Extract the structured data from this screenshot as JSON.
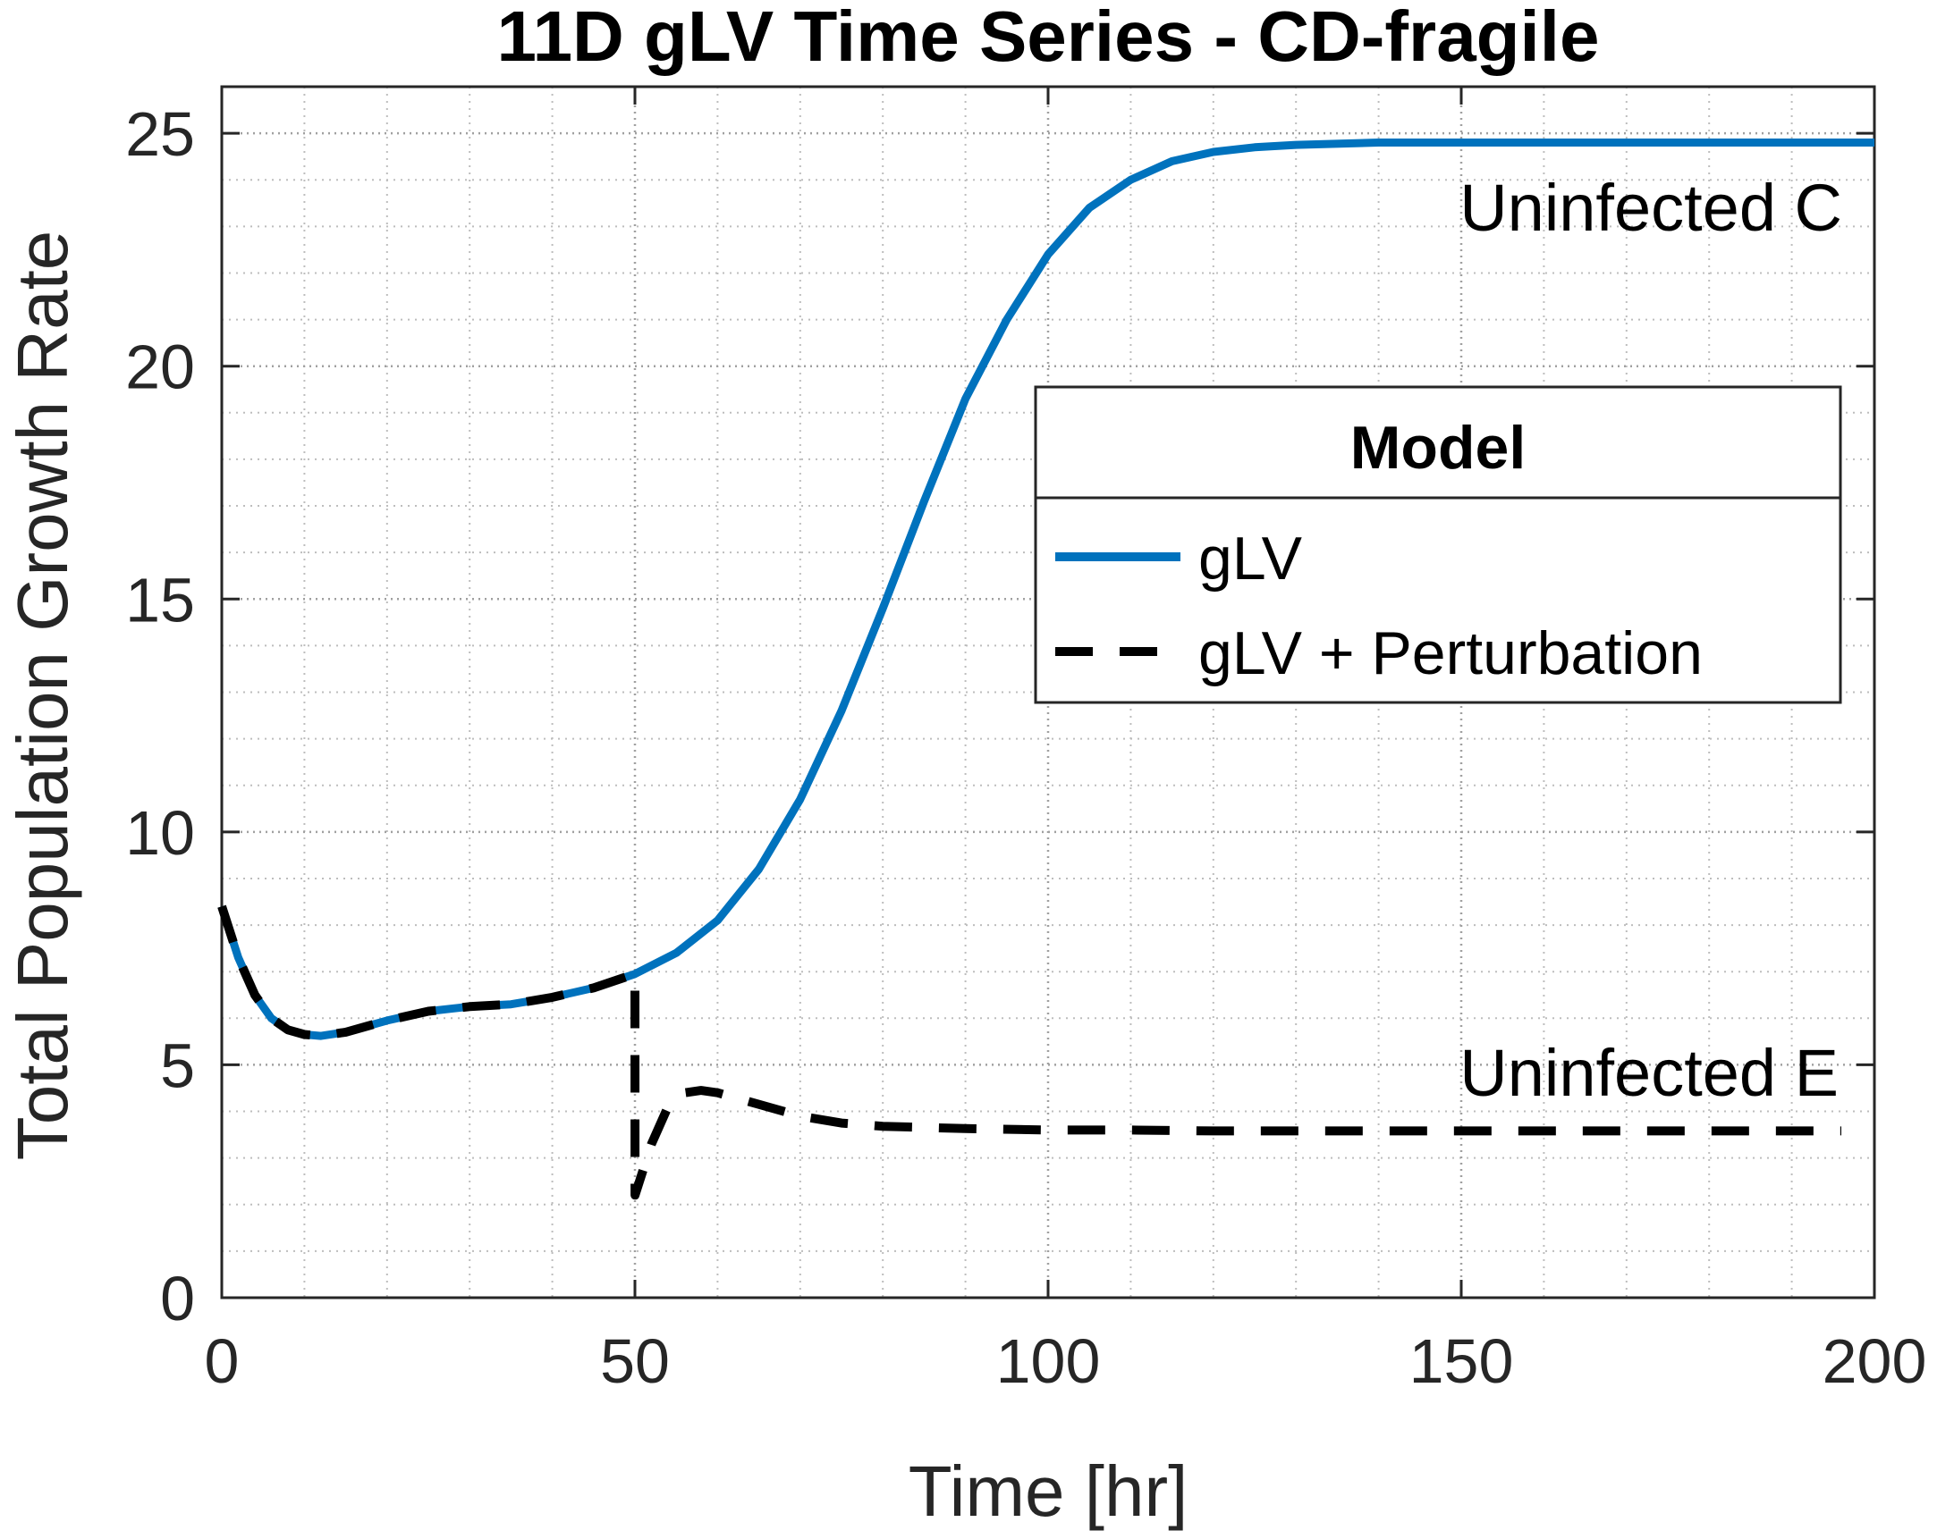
{
  "chart_data": {
    "type": "line",
    "title": "11D gLV Time Series - CD-fragile",
    "xlabel": "Time [hr]",
    "ylabel": "Total Population Growth Rate",
    "xlim": [
      0,
      200
    ],
    "ylim": [
      0,
      26
    ],
    "xticks": [
      0,
      50,
      100,
      150,
      200
    ],
    "yticks": [
      0,
      5,
      10,
      15,
      20,
      25
    ],
    "x_tick_labels": [
      "0",
      "50",
      "100",
      "150",
      "200"
    ],
    "y_tick_labels": [
      "0",
      "5",
      "10",
      "15",
      "20",
      "25"
    ],
    "grid": true,
    "minor_grid": true,
    "legend": {
      "title": "Model",
      "placement": "right-center",
      "entries": [
        {
          "label": "gLV",
          "color": "#0072BD",
          "style": "solid"
        },
        {
          "label": "gLV + Perturbation",
          "color": "#000000",
          "style": "dashed"
        }
      ]
    },
    "series": [
      {
        "name": "gLV",
        "color": "#0072BD",
        "style": "solid",
        "x": [
          0,
          2,
          4,
          6,
          8,
          10,
          12,
          15,
          20,
          25,
          30,
          35,
          40,
          45,
          50,
          55,
          60,
          65,
          70,
          75,
          80,
          85,
          90,
          95,
          100,
          105,
          110,
          115,
          120,
          125,
          130,
          140,
          150,
          160,
          180,
          200
        ],
        "y": [
          8.4,
          7.3,
          6.5,
          6.0,
          5.75,
          5.65,
          5.62,
          5.7,
          5.95,
          6.15,
          6.25,
          6.3,
          6.45,
          6.65,
          6.95,
          7.4,
          8.1,
          9.2,
          10.7,
          12.6,
          14.8,
          17.1,
          19.3,
          21.0,
          22.4,
          23.4,
          24.0,
          24.4,
          24.6,
          24.7,
          24.75,
          24.8,
          24.8,
          24.8,
          24.8,
          24.8
        ]
      },
      {
        "name": "gLV + Perturbation",
        "color": "#000000",
        "style": "dashed",
        "x": [
          0,
          2,
          4,
          6,
          8,
          10,
          12,
          15,
          20,
          25,
          30,
          35,
          40,
          45,
          50,
          50.01,
          52,
          54,
          56,
          58,
          60,
          65,
          70,
          75,
          80,
          90,
          100,
          110,
          120,
          140,
          160,
          180,
          196
        ],
        "y": [
          8.4,
          7.3,
          6.5,
          6.0,
          5.75,
          5.65,
          5.62,
          5.7,
          5.95,
          6.15,
          6.25,
          6.3,
          6.45,
          6.65,
          6.95,
          2.2,
          3.3,
          4.1,
          4.4,
          4.45,
          4.4,
          4.15,
          3.9,
          3.75,
          3.68,
          3.63,
          3.6,
          3.6,
          3.58,
          3.58,
          3.58,
          3.58,
          3.58
        ]
      }
    ],
    "annotations": [
      {
        "text": "Uninfected C"
      },
      {
        "text": "Uninfected E"
      }
    ]
  }
}
